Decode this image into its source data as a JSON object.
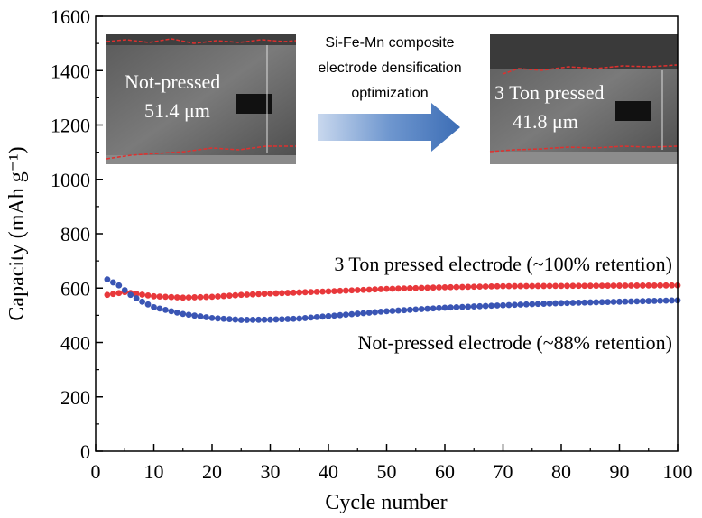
{
  "chart_data": {
    "type": "scatter",
    "xlabel": "Cycle number",
    "ylabel": "Capacity (mAh g⁻¹)",
    "xlim": [
      0,
      100
    ],
    "ylim": [
      0,
      1600
    ],
    "xticks": [
      0,
      10,
      20,
      30,
      40,
      50,
      60,
      70,
      80,
      90,
      100
    ],
    "yticks": [
      0,
      200,
      400,
      600,
      800,
      1000,
      1200,
      1400,
      1600
    ],
    "grid": false,
    "series": [
      {
        "name": "3 Ton pressed electrode (~100% retention)",
        "color": "#e8383b",
        "x": [
          2,
          5,
          10,
          15,
          20,
          25,
          30,
          40,
          50,
          60,
          70,
          80,
          90,
          100
        ],
        "y": [
          575,
          585,
          570,
          565,
          568,
          575,
          580,
          588,
          597,
          603,
          607,
          608,
          609,
          610
        ]
      },
      {
        "name": "Not-pressed electrode (~88% retention)",
        "color": "#3a55b4",
        "x": [
          2,
          4,
          6,
          8,
          10,
          15,
          20,
          25,
          30,
          35,
          40,
          50,
          60,
          70,
          80,
          90,
          100
        ],
        "y": [
          632,
          610,
          575,
          550,
          530,
          505,
          490,
          483,
          484,
          488,
          497,
          515,
          528,
          537,
          545,
          550,
          555
        ]
      }
    ],
    "annotations": {
      "pressed_label": "3 Ton pressed electrode (~100% retention)",
      "notpressed_label": "Not-pressed electrode (~88% retention)",
      "arrow_text_lines": [
        "Si-Fe-Mn composite",
        "electrode densification",
        "optimization"
      ],
      "left_sem_lines": [
        "Not-pressed",
        "51.4 μm"
      ],
      "right_sem_lines": [
        "3 Ton pressed",
        "41.8 μm"
      ]
    }
  }
}
